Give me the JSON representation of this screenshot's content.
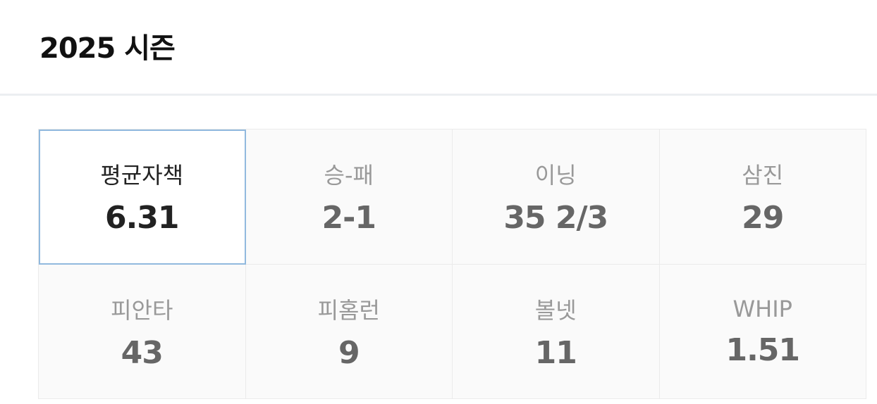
{
  "header": {
    "title": "2025 시즌"
  },
  "stats": [
    {
      "label": "평균자책",
      "value": "6.31",
      "selected": true
    },
    {
      "label": "승-패",
      "value": "2-1"
    },
    {
      "label": "이닝",
      "value": "35 2/3"
    },
    {
      "label": "삼진",
      "value": "29"
    },
    {
      "label": "피안타",
      "value": "43"
    },
    {
      "label": "피홈런",
      "value": "9"
    },
    {
      "label": "볼넷",
      "value": "11"
    },
    {
      "label": "WHIP",
      "value": "1.51"
    }
  ],
  "colors": {
    "selected_border": "#91b9de",
    "cell_bg": "#fafafa"
  }
}
